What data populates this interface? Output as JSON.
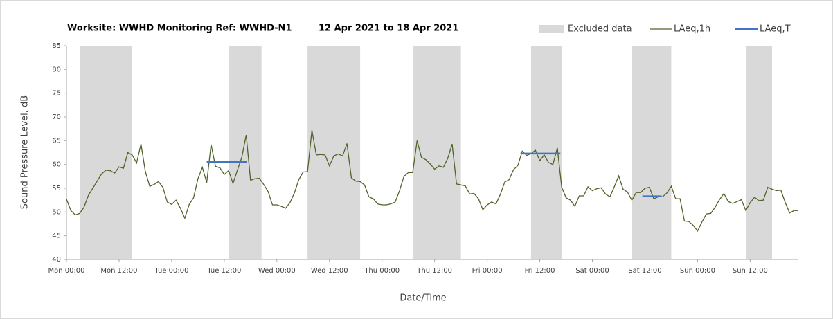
{
  "chart_data": {
    "type": "line",
    "title": "Worksite: WWHD Monitoring Ref: WWHD-N1",
    "subtitle": "12 Apr 2021 to 18 Apr 2021",
    "x_label": "Date/Time",
    "y_label": "Sound Pressure Level, dB",
    "xlim": [
      0,
      167
    ],
    "ylim": [
      40,
      85
    ],
    "yticks": [
      40,
      45,
      50,
      55,
      60,
      65,
      70,
      75,
      80,
      85
    ],
    "xticks": [
      {
        "value": 0,
        "label": "Mon 00:00"
      },
      {
        "value": 12,
        "label": "Mon 12:00"
      },
      {
        "value": 24,
        "label": "Tue 00:00"
      },
      {
        "value": 36,
        "label": "Tue 12:00"
      },
      {
        "value": 48,
        "label": "Wed 00:00"
      },
      {
        "value": 60,
        "label": "Wed 12:00"
      },
      {
        "value": 72,
        "label": "Thu 00:00"
      },
      {
        "value": 84,
        "label": "Thu 12:00"
      },
      {
        "value": 96,
        "label": "Fri 00:00"
      },
      {
        "value": 108,
        "label": "Fri 12:00"
      },
      {
        "value": 120,
        "label": "Sat 00:00"
      },
      {
        "value": 132,
        "label": "Sat 12:00"
      },
      {
        "value": 144,
        "label": "Sun 00:00"
      },
      {
        "value": 156,
        "label": "Sun 12:00"
      }
    ],
    "excluded": {
      "name": "Excluded data",
      "color": "#d9d9d9",
      "spans": [
        [
          3,
          15
        ],
        [
          37,
          44.5
        ],
        [
          55,
          67
        ],
        [
          79,
          90
        ],
        [
          106,
          113
        ],
        [
          129,
          138
        ],
        [
          155,
          161
        ]
      ]
    },
    "series": [
      {
        "name": "LAeq,1h",
        "color": "#4f6228",
        "x": [
          0,
          1,
          2,
          3,
          4,
          5,
          6,
          7,
          8,
          9,
          10,
          11,
          12,
          13,
          14,
          15,
          16,
          17,
          18,
          19,
          20,
          21,
          22,
          23,
          24,
          25,
          26,
          27,
          28,
          29,
          30,
          31,
          32,
          33,
          34,
          35,
          36,
          37,
          38,
          39,
          40,
          41,
          42,
          43,
          44,
          45,
          46,
          47,
          48,
          49,
          50,
          51,
          52,
          53,
          54,
          55,
          56,
          57,
          58,
          59,
          60,
          61,
          62,
          63,
          64,
          65,
          66,
          67,
          68,
          69,
          70,
          71,
          72,
          73,
          74,
          75,
          76,
          77,
          78,
          79,
          80,
          81,
          82,
          83,
          84,
          85,
          86,
          87,
          88,
          89,
          90,
          91,
          92,
          93,
          94,
          95,
          96,
          97,
          98,
          99,
          100,
          101,
          102,
          103,
          104,
          105,
          106,
          107,
          108,
          109,
          110,
          111,
          112,
          113,
          114,
          115,
          116,
          117,
          118,
          119,
          120,
          121,
          122,
          123,
          124,
          125,
          126,
          127,
          128,
          129,
          130,
          131,
          132,
          133,
          134,
          135,
          136,
          137,
          138,
          139,
          140,
          141,
          142,
          143,
          144,
          145,
          146,
          147,
          148,
          149,
          150,
          151,
          152,
          153,
          154,
          155,
          156,
          157,
          158,
          159,
          160,
          161,
          162,
          163,
          164,
          165,
          166,
          167
        ],
        "values": [
          52.7,
          50.3,
          49.4,
          49.7,
          51,
          53.5,
          55,
          56.5,
          58,
          58.8,
          58.7,
          58.2,
          59.5,
          59.2,
          62.5,
          62,
          60.3,
          64.3,
          58.5,
          55.4,
          55.8,
          56.4,
          55.2,
          52.1,
          51.6,
          52.5,
          50.8,
          48.7,
          51.6,
          53,
          57,
          59.4,
          56.2,
          64.2,
          59.6,
          59.3,
          57.9,
          58.7,
          56,
          58.8,
          61.5,
          66.2,
          56.7,
          57,
          57.1,
          55.8,
          54.3,
          51.5,
          51.5,
          51.2,
          50.8,
          52,
          54,
          56.8,
          58.4,
          58.5,
          67.2,
          62,
          62.1,
          62,
          59.7,
          61.8,
          62.2,
          61.8,
          64.4,
          57.2,
          56.5,
          56.4,
          55.7,
          53.2,
          52.8,
          51.7,
          51.5,
          51.5,
          51.7,
          52.1,
          54.5,
          57.5,
          58.3,
          58.3,
          65,
          61.5,
          61,
          60.1,
          59,
          59.7,
          59.4,
          61.3,
          64.3,
          55.9,
          55.7,
          55.5,
          53.8,
          53.9,
          52.8,
          50.5,
          51.5,
          52.1,
          51.7,
          53.7,
          56.3,
          56.8,
          58.9,
          59.8,
          62.8,
          61.9,
          62.3,
          63,
          60.8,
          62,
          60.4,
          60,
          63.5,
          55.2,
          53,
          52.5,
          51.2,
          53.4,
          53.4,
          55.3,
          54.5,
          54.9,
          55.1,
          53.8,
          53.2,
          55.3,
          57.6,
          54.8,
          54.2,
          52.5,
          54.1,
          54.1,
          55,
          55.2,
          52.8,
          53.2,
          53.2,
          54,
          55.4,
          52.8,
          52.8,
          48.1,
          48,
          47.2,
          46,
          47.9,
          49.6,
          49.7,
          51,
          52.6,
          53.9,
          52.2,
          51.8,
          52.2,
          52.6,
          50.3,
          52,
          53.1,
          52.4,
          52.5,
          55.2,
          54.8,
          54.5,
          54.6,
          52,
          49.8,
          50.3,
          50.3
        ]
      },
      {
        "name": "LAeq,T",
        "color": "#4472c4",
        "x_ranges": [
          [
            32,
            41.2
          ],
          [
            103.6,
            112.7
          ],
          [
            131.4,
            135.8
          ]
        ],
        "values": [
          60.5,
          62.3,
          53.3
        ]
      }
    ]
  }
}
